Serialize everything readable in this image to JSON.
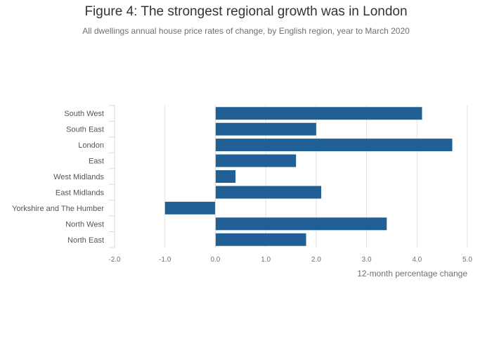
{
  "chart_data": {
    "type": "bar",
    "orientation": "horizontal",
    "title": "Figure 4: The strongest regional growth was in London",
    "subtitle": "All dwellings annual house price rates of change, by English region, year to March 2020",
    "xlabel": "12-month percentage change",
    "ylabel": "",
    "categories": [
      "South West",
      "South East",
      "London",
      "East",
      "West Midlands",
      "East Midlands",
      "Yorkshire and The Humber",
      "North West",
      "North East"
    ],
    "values": [
      4.1,
      2.0,
      4.7,
      1.6,
      0.4,
      2.1,
      -1.0,
      3.4,
      1.8
    ],
    "xlim": [
      -2.0,
      5.0
    ],
    "xticks": [
      "-2.0",
      "-1.0",
      "0.0",
      "1.0",
      "2.0",
      "3.0",
      "4.0",
      "5.0"
    ],
    "grid": true,
    "colors": {
      "bar": "#206095",
      "grid": "#e2e2e2",
      "axis_text": "#707070"
    }
  }
}
